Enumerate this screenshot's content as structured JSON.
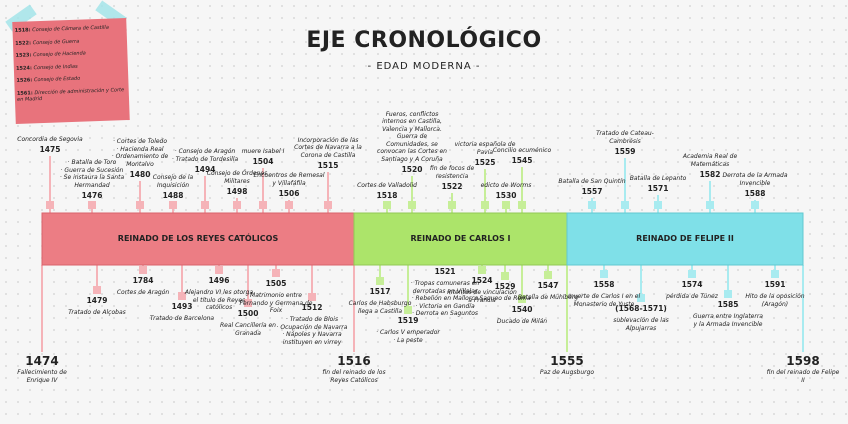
{
  "header": {
    "title": "EJE CRONOLÓGICO",
    "subtitle": "- EDAD MODERNA -"
  },
  "note": {
    "items": [
      {
        "year": "1518:",
        "text": "Consejo de Cámara de Castilla"
      },
      {
        "year": "1522:",
        "text": "Consejo de Guerra"
      },
      {
        "year": "1523:",
        "text": "Consejo de Hacienda"
      },
      {
        "year": "1524:",
        "text": "Consejo de Indias"
      },
      {
        "year": "1526:",
        "text": "Consejo de Estado"
      },
      {
        "year": "1561:",
        "text": "Dirección de administración y Corte en Madrid"
      }
    ]
  },
  "periods": [
    "REINADO DE LOS REYES CATÓLICOS",
    "REINADO DE CARLOS I",
    "REINADO DE FELIPE II"
  ],
  "top_events": [
    {
      "year": "1475",
      "lines": [
        "Concordia de Segovia"
      ]
    },
    {
      "year": "1476",
      "lines": [
        "· Batalla de Toro",
        "· Guerra de Sucesión",
        "· Se instaura la Santa Hermandad"
      ]
    },
    {
      "year": "1480",
      "lines": [
        "· Cortes de Toledo",
        "· Hacienda Real",
        "· Ordenamiento de Montalvo"
      ]
    },
    {
      "year": "1488",
      "lines": [
        "Consejo de la Inquisición"
      ]
    },
    {
      "year": "1494",
      "lines": [
        "· Consejo de Aragón",
        "· Tratado de Tordesilla"
      ]
    },
    {
      "year": "1498",
      "lines": [
        "Consejo de Órdenes Militares"
      ]
    },
    {
      "year": "1504",
      "lines": [
        "muere Isabel I"
      ]
    },
    {
      "year": "1506",
      "lines": [
        "Encuentros de Remesal y Villafáfila"
      ]
    },
    {
      "year": "1515",
      "lines": [
        "Incorporación de las Cortes de Navarra a la Corona de Castilla"
      ]
    },
    {
      "year": "1518",
      "lines": [
        "Cortes de Valladolid"
      ]
    },
    {
      "year": "1520",
      "lines": [
        "Fueros, conflictos internos en Castilla, Valencia y Mallorca. Guerra de Comunidades, se convocan las Cortes en Santiago y A Coruña"
      ]
    },
    {
      "year": "1522",
      "lines": [
        "fin de focos de resistencia"
      ]
    },
    {
      "year": "1525",
      "lines": [
        "victoria española de Pavía"
      ]
    },
    {
      "year": "1530",
      "lines": [
        "edicto de Worms"
      ]
    },
    {
      "year": "1545",
      "lines": [
        "Concilio ecuménico"
      ]
    },
    {
      "year": "1557",
      "lines": [
        "Batalla de San Quintín"
      ]
    },
    {
      "year": "1559",
      "lines": [
        "Tratado de Cateau-Cambrésis"
      ]
    },
    {
      "year": "1571",
      "lines": [
        "Batalla de Lepanto"
      ]
    },
    {
      "year": "1582",
      "lines": [
        "Academia Real de Matemáticas"
      ]
    },
    {
      "year": "1588",
      "lines": [
        "Derrota de la Armada Invencible"
      ]
    }
  ],
  "bottom_events": [
    {
      "year": "1474",
      "lines": [
        "Fallecimiento de Enrique IV"
      ]
    },
    {
      "year": "1479",
      "lines": [
        "Tratado de Alçobas"
      ]
    },
    {
      "year": "1784",
      "lines": [
        "Cortes de Aragón"
      ]
    },
    {
      "year": "1493",
      "lines": [
        "Tratado de Barcelona"
      ]
    },
    {
      "year": "1496",
      "lines": [
        "Alejandro VI les otorga el título de Reyes católicos"
      ]
    },
    {
      "year": "1500",
      "lines": [
        "Real Cancillería en Granada"
      ]
    },
    {
      "year": "1505",
      "lines": [
        "Matrimonio entre Fernando y Germana de Foix"
      ]
    },
    {
      "year": "1512",
      "lines": [
        "· Tratado de Blois",
        "· Ocupación de Navarra",
        "· Nápoles y Navarra instituyen en virrey"
      ]
    },
    {
      "year": "1516",
      "lines": [
        "fin del reinado de los Reyes Católicos"
      ]
    },
    {
      "year": "1517",
      "lines": [
        "Carlos de Habsburgo llega a Castilla"
      ]
    },
    {
      "year": "1519",
      "lines": [
        "· Carlos V emperador",
        "· La peste"
      ]
    },
    {
      "year": "1521",
      "lines": [
        "· Tropas comuneras en derrotadas en Villalar",
        "· Rebelión en Mallorca",
        "· Victoria en Gandía",
        "· Derrota en Saguntos"
      ]
    },
    {
      "year": "1524",
      "lines": [
        "intentos de vinculación a Francia"
      ]
    },
    {
      "year": "1529",
      "lines": [
        "Saqueo de Roma"
      ]
    },
    {
      "year": "1540",
      "lines": [
        "Ducado de Milán"
      ]
    },
    {
      "year": "1547",
      "lines": [
        "Batalla de Mühlberg"
      ]
    },
    {
      "year": "1555",
      "lines": [
        "Paz de Augsburgo"
      ]
    },
    {
      "year": "1558",
      "lines": [
        "muerte de Carlos I en el Monasterio de Yuste"
      ]
    },
    {
      "year": "(1568-1571)",
      "lines": [
        "sublevación de las Alpujarras"
      ]
    },
    {
      "year": "1574",
      "lines": [
        "pérdida de Túnez"
      ]
    },
    {
      "year": "1585",
      "lines": [
        "Guerra entre Inglaterra y la Armada Invencible"
      ]
    },
    {
      "year": "1591",
      "lines": [
        "Hito de la oposición (Aragón)"
      ]
    },
    {
      "year": "1598",
      "lines": [
        "fin del reinado de Felipe II"
      ]
    }
  ]
}
